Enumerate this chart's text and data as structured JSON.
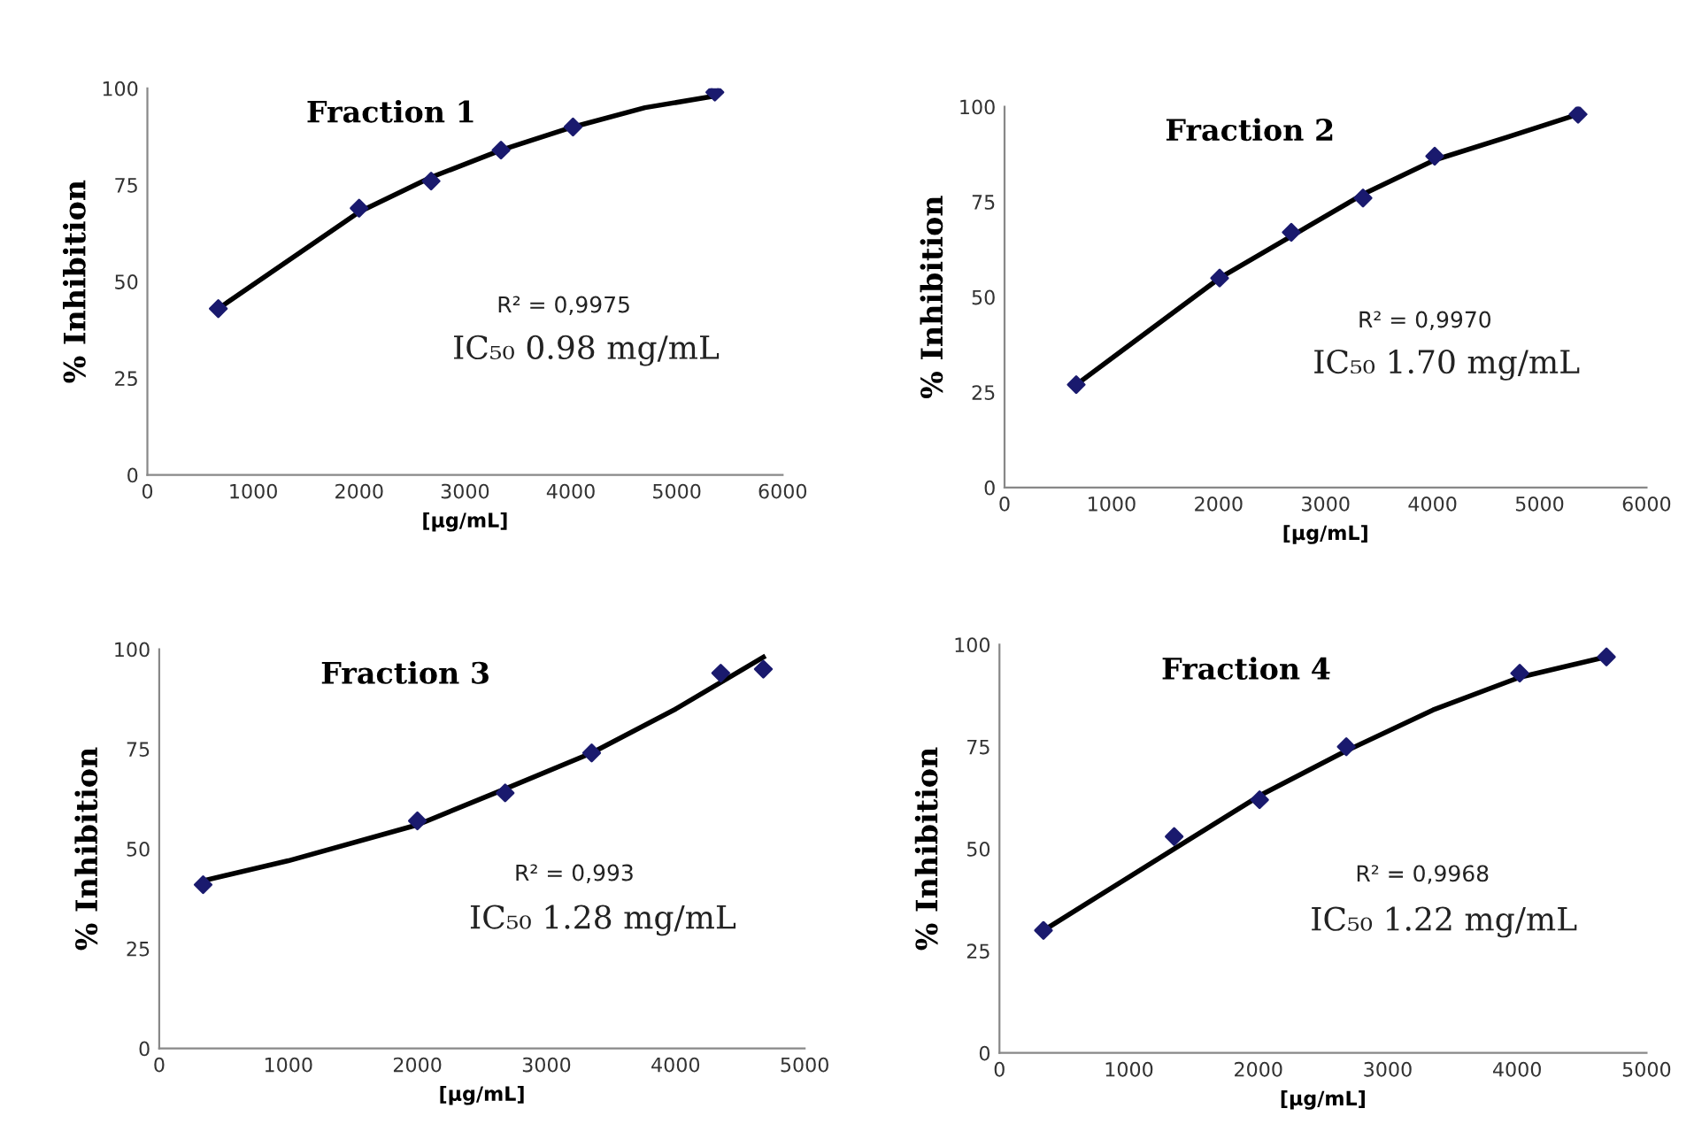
{
  "chart_data": [
    {
      "type": "scatter",
      "title": "Fraction 1",
      "xlabel": "[µg/mL]",
      "ylabel": "% Inhibition",
      "xlim": [
        0,
        6000
      ],
      "xticks": [
        0,
        1000,
        2000,
        3000,
        4000,
        5000,
        6000
      ],
      "ylim": [
        0,
        100
      ],
      "yticks": [
        0,
        25,
        50,
        75,
        100
      ],
      "grid": false,
      "legend": false,
      "annotations": [
        "R² = 0,9975",
        "IC₅₀ 0.98 mg/mL"
      ],
      "series": [
        {
          "color": "#1a1a6e",
          "marker": "diamond",
          "x": [
            670,
            2000,
            2680,
            3340,
            4020,
            5360
          ],
          "values": [
            43,
            69,
            76,
            84,
            90,
            99
          ]
        },
        {
          "type": "line",
          "color": "#000000",
          "marker": "none",
          "line_style": "solid",
          "x": [
            670,
            2000,
            2680,
            3340,
            4020,
            4700,
            5360
          ],
          "values": [
            43,
            68,
            77,
            84,
            90,
            95,
            98
          ]
        }
      ]
    },
    {
      "type": "scatter",
      "title": "Fraction 2",
      "xlabel": "[µg/mL]",
      "ylabel": "% Inhibition",
      "xlim": [
        0,
        6000
      ],
      "xticks": [
        0,
        1000,
        2000,
        3000,
        4000,
        5000,
        6000
      ],
      "ylim": [
        0,
        100
      ],
      "yticks": [
        0,
        25,
        50,
        75,
        100
      ],
      "grid": false,
      "legend": false,
      "annotations": [
        "R² = 0,9970",
        "IC₅₀ 1.70 mg/mL"
      ],
      "series": [
        {
          "color": "#1a1a6e",
          "marker": "diamond",
          "x": [
            670,
            2010,
            2680,
            3350,
            4020,
            5360
          ],
          "values": [
            27,
            55,
            67,
            76,
            87,
            98
          ]
        },
        {
          "type": "line",
          "color": "#000000",
          "marker": "none",
          "line_style": "solid",
          "x": [
            670,
            2010,
            2680,
            3350,
            4020,
            4700,
            5360
          ],
          "values": [
            27,
            55,
            66,
            77,
            86,
            92,
            98
          ]
        }
      ]
    },
    {
      "type": "scatter",
      "title": "Fraction 3",
      "xlabel": "[µg/mL]",
      "ylabel": "% Inhibition",
      "xlim": [
        0,
        5000
      ],
      "xticks": [
        0,
        1000,
        2000,
        3000,
        4000,
        5000
      ],
      "ylim": [
        0,
        100
      ],
      "yticks": [
        0,
        25,
        50,
        75,
        100
      ],
      "grid": false,
      "legend": false,
      "annotations": [
        "R² = 0,993",
        "IC₅₀ 1.28 mg/mL"
      ],
      "series": [
        {
          "color": "#1a1a6e",
          "marker": "diamond",
          "x": [
            340,
            2000,
            2680,
            3350,
            4350,
            4680
          ],
          "values": [
            41,
            57,
            64,
            74,
            94,
            95
          ]
        },
        {
          "type": "line",
          "color": "#000000",
          "marker": "none",
          "line_style": "solid",
          "x": [
            340,
            1000,
            2000,
            2680,
            3350,
            4000,
            4680
          ],
          "values": [
            42,
            47,
            56,
            65,
            74,
            85,
            98
          ]
        }
      ]
    },
    {
      "type": "scatter",
      "title": "Fraction 4",
      "xlabel": "[µg/mL]",
      "ylabel": "% Inhibition",
      "xlim": [
        0,
        5000
      ],
      "xticks": [
        0,
        1000,
        2000,
        3000,
        4000,
        5000
      ],
      "ylim": [
        0,
        100
      ],
      "yticks": [
        0,
        25,
        50,
        75,
        100
      ],
      "grid": false,
      "legend": false,
      "annotations": [
        "R² = 0,9968",
        "IC₅₀ 1.22 mg/mL"
      ],
      "series": [
        {
          "color": "#1a1a6e",
          "marker": "diamond",
          "x": [
            340,
            1350,
            2010,
            2680,
            4020,
            4690
          ],
          "values": [
            30,
            53,
            62,
            75,
            93,
            97
          ]
        },
        {
          "type": "line",
          "color": "#000000",
          "marker": "none",
          "line_style": "solid",
          "x": [
            340,
            1350,
            2010,
            2680,
            3350,
            4020,
            4690
          ],
          "values": [
            30,
            50,
            63,
            74,
            84,
            92,
            97
          ]
        }
      ]
    }
  ]
}
